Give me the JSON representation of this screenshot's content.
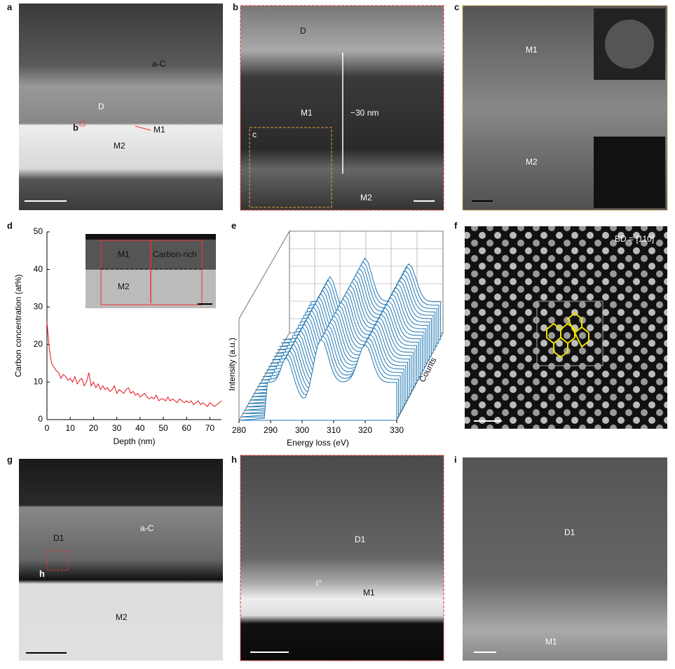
{
  "panels": {
    "a": {
      "letter": "a",
      "labels": [
        "a-C",
        "D",
        "b",
        "M1",
        "M2"
      ]
    },
    "b": {
      "letter": "b",
      "labels": [
        "D",
        "M1",
        "~30 nm",
        "c",
        "M2"
      ]
    },
    "c": {
      "letter": "c",
      "labels": [
        "M1",
        "M2"
      ]
    },
    "f": {
      "letter": "f",
      "labels": [
        "BD = [110]"
      ]
    },
    "g": {
      "letter": "g",
      "labels": [
        "D1",
        "a-C",
        "h",
        "M2"
      ]
    },
    "h": {
      "letter": "h",
      "labels": [
        "D1",
        "i⁺",
        "M1"
      ]
    },
    "i": {
      "letter": "i",
      "labels": [
        "D1",
        "M1"
      ]
    }
  },
  "chart_data": [
    {
      "type": "line",
      "letter": "d",
      "xlabel": "Depth (nm)",
      "ylabel": "Carbon concentration (at%)",
      "inset_labels": [
        "M1",
        "Carbon-rich",
        "M2"
      ],
      "xlim": [
        0,
        75
      ],
      "ylim": [
        0,
        50
      ],
      "xticks": [
        0,
        10,
        20,
        30,
        40,
        50,
        60,
        70
      ],
      "yticks": [
        0,
        10,
        20,
        30,
        40,
        50
      ],
      "x": [
        0,
        1,
        2,
        3,
        4,
        5,
        6,
        7,
        8,
        9,
        10,
        11,
        12,
        13,
        14,
        15,
        16,
        17,
        18,
        19,
        20,
        21,
        22,
        23,
        24,
        25,
        26,
        27,
        28,
        29,
        30,
        31,
        32,
        33,
        34,
        35,
        36,
        37,
        38,
        39,
        40,
        41,
        42,
        43,
        44,
        45,
        46,
        47,
        48,
        49,
        50,
        51,
        52,
        53,
        54,
        55,
        56,
        57,
        58,
        59,
        60,
        61,
        62,
        63,
        64,
        65,
        66,
        67,
        68,
        69,
        70,
        71,
        72,
        73,
        74,
        75
      ],
      "series": [
        {
          "color": "#e8121b",
          "values": [
            26,
            19,
            15,
            14,
            13,
            12.5,
            11,
            12,
            11.5,
            10.5,
            11,
            10,
            11.5,
            9.5,
            10.5,
            11,
            9,
            10,
            12.5,
            9,
            10,
            8.5,
            9.5,
            8,
            9,
            8,
            8.5,
            7.5,
            8,
            9,
            7,
            8,
            7.5,
            7,
            8,
            8.5,
            7,
            7.5,
            6.5,
            7,
            6,
            6.5,
            7,
            6,
            5.5,
            6,
            5.5,
            6.5,
            5,
            5.5,
            5.5,
            5,
            6,
            5,
            5.5,
            5,
            4.5,
            5.5,
            5,
            4.5,
            5,
            4.5,
            5,
            4,
            4.5,
            5,
            4,
            4.5,
            4,
            3.5,
            4.5,
            4,
            3.5,
            4,
            4.5,
            5
          ]
        }
      ]
    },
    {
      "type": "waterfall",
      "letter": "e",
      "xlabel": "Energy loss (eV)",
      "ylabel": "Intensity (a.u.)",
      "zlabel": "Counts",
      "xlim": [
        280,
        330
      ],
      "xticks": [
        280,
        290,
        300,
        310,
        320,
        330
      ],
      "color": "#1f77b4"
    }
  ]
}
